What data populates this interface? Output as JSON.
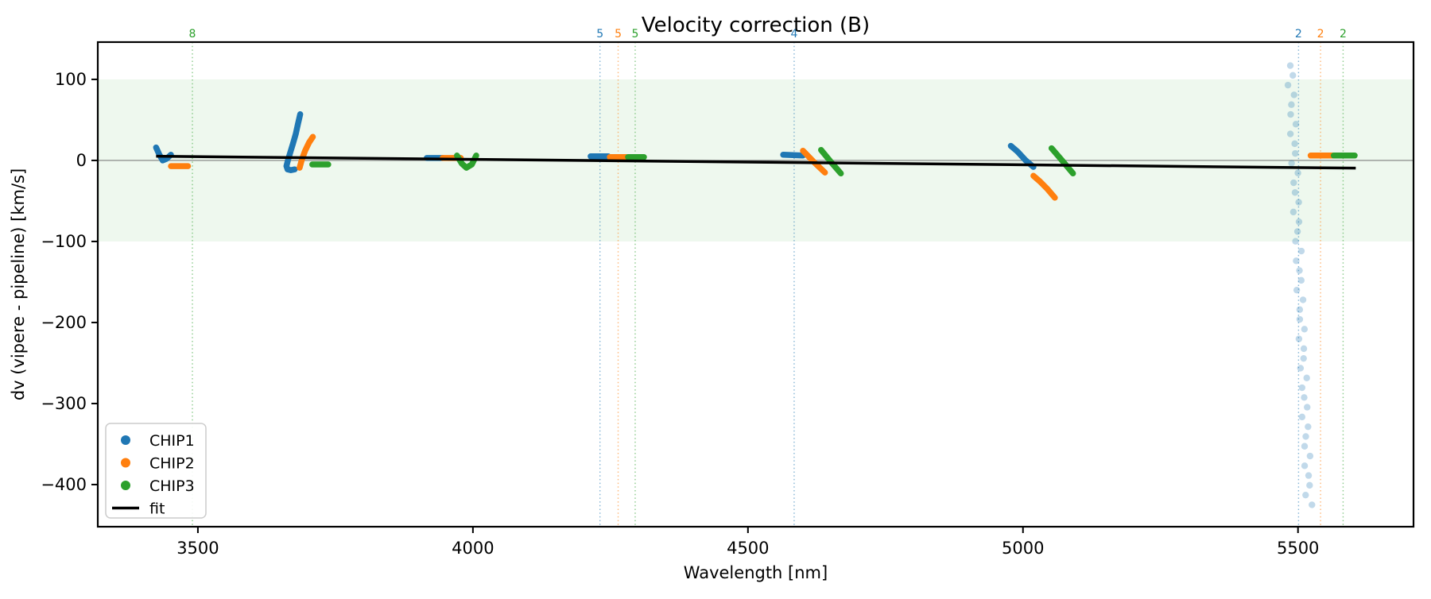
{
  "figure": {
    "title": "Velocity correction (B)",
    "xlabel": "Wavelength [nm]",
    "ylabel": "dv (vipere - pipeline) [km/s]"
  },
  "chart_data": {
    "type": "scatter",
    "title": "Velocity correction (B)",
    "xlabel": "Wavelength [nm]",
    "ylabel": "dv (vipere - pipeline) [km/s]",
    "xlim": [
      3318,
      5710
    ],
    "ylim": [
      -452,
      146
    ],
    "x_ticks": [
      3500,
      4000,
      4500,
      5000,
      5500
    ],
    "y_ticks": [
      100,
      0,
      -100,
      -200,
      -300,
      -400
    ],
    "grid": false,
    "band": {
      "ymin": -100,
      "ymax": 100,
      "color": "rgba(44,160,44,0.08)"
    },
    "zero_line": {
      "y": 0,
      "color": "#7f7f7f"
    },
    "colors": {
      "CHIP1": "#1f77b4",
      "CHIP2": "#ff7f0e",
      "CHIP3": "#2ca02c",
      "fit": "#000000"
    },
    "legend": {
      "position": "lower left",
      "entries": [
        {
          "label": "CHIP1",
          "marker": "dot",
          "color": "#1f77b4"
        },
        {
          "label": "CHIP2",
          "marker": "dot",
          "color": "#ff7f0e"
        },
        {
          "label": "CHIP3",
          "marker": "dot",
          "color": "#2ca02c"
        },
        {
          "label": "fit",
          "marker": "line",
          "color": "#000000"
        }
      ]
    },
    "vlines": [
      {
        "x": 3490,
        "count": "8",
        "series": "CHIP3"
      },
      {
        "x": 4231,
        "count": "5",
        "series": "CHIP1"
      },
      {
        "x": 4264,
        "count": "5",
        "series": "CHIP2"
      },
      {
        "x": 4295,
        "count": "5",
        "series": "CHIP3"
      },
      {
        "x": 4584,
        "count": "4",
        "series": "CHIP1"
      },
      {
        "x": 5501,
        "count": "2",
        "series": "CHIP1"
      },
      {
        "x": 5541,
        "count": "2",
        "series": "CHIP2"
      },
      {
        "x": 5582,
        "count": "2",
        "series": "CHIP3"
      }
    ],
    "series": [
      {
        "name": "CHIP1",
        "color": "#1f77b4",
        "segments": [
          [
            [
              3424,
              16
            ],
            [
              3430,
              7
            ],
            [
              3436,
              0
            ],
            [
              3443,
              2
            ],
            [
              3451,
              7
            ]
          ],
          [
            [
              3686,
              57
            ],
            [
              3682,
              45
            ],
            [
              3678,
              33
            ],
            [
              3673,
              21
            ],
            [
              3668,
              10
            ],
            [
              3664,
              1
            ],
            [
              3661,
              -7
            ],
            [
              3663,
              -11
            ],
            [
              3669,
              -12
            ],
            [
              3676,
              -11
            ]
          ],
          [
            [
              3916,
              3
            ],
            [
              3945,
              3
            ]
          ],
          [
            [
              4214,
              5
            ],
            [
              4246,
              5
            ]
          ],
          [
            [
              4564,
              7
            ],
            [
              4600,
              6
            ]
          ],
          [
            [
              4978,
              18
            ],
            [
              4990,
              11
            ],
            [
              5005,
              0
            ],
            [
              5019,
              -8
            ]
          ]
        ]
      },
      {
        "name": "CHIP2",
        "color": "#ff7f0e",
        "segments": [
          [
            [
              3451,
              -7
            ],
            [
              3482,
              -7
            ]
          ],
          [
            [
              3685,
              -9
            ],
            [
              3689,
              1
            ],
            [
              3695,
              12
            ],
            [
              3702,
              22
            ],
            [
              3709,
              29
            ]
          ],
          [
            [
              3945,
              3
            ],
            [
              3978,
              3
            ]
          ],
          [
            [
              4249,
              4
            ],
            [
              4279,
              4
            ]
          ],
          [
            [
              4600,
              12
            ],
            [
              4620,
              -2
            ],
            [
              4640,
              -15
            ]
          ],
          [
            [
              5019,
              -19
            ],
            [
              5031,
              -26
            ],
            [
              5044,
              -35
            ],
            [
              5058,
              -46
            ]
          ],
          [
            [
              5523,
              6
            ],
            [
              5562,
              6
            ]
          ]
        ]
      },
      {
        "name": "CHIP3",
        "color": "#2ca02c",
        "segments": [
          [
            [
              3708,
              -5
            ],
            [
              3737,
              -5
            ]
          ],
          [
            [
              3971,
              6
            ],
            [
              3980,
              -4
            ],
            [
              3988,
              -9
            ],
            [
              3998,
              -5
            ],
            [
              4006,
              6
            ]
          ],
          [
            [
              4282,
              4
            ],
            [
              4311,
              4
            ]
          ],
          [
            [
              4633,
              13
            ],
            [
              4651,
              -2
            ],
            [
              4669,
              -16
            ]
          ],
          [
            [
              5052,
              15
            ],
            [
              5071,
              0
            ],
            [
              5091,
              -16
            ]
          ],
          [
            [
              5565,
              6
            ],
            [
              5603,
              6
            ]
          ]
        ]
      },
      {
        "name": "CHIP1-outlier-trail",
        "color": "#1f77b4",
        "opacity": 0.28,
        "style": "big-dots",
        "trail": {
          "x_start": 5486,
          "x_end": 5520,
          "v_start": 117,
          "v_end": -425,
          "count": 46
        }
      }
    ],
    "fit_line": {
      "label": "fit",
      "color": "#000000",
      "x": [
        3424,
        5605
      ],
      "y": [
        5.2,
        -9.5
      ]
    }
  }
}
